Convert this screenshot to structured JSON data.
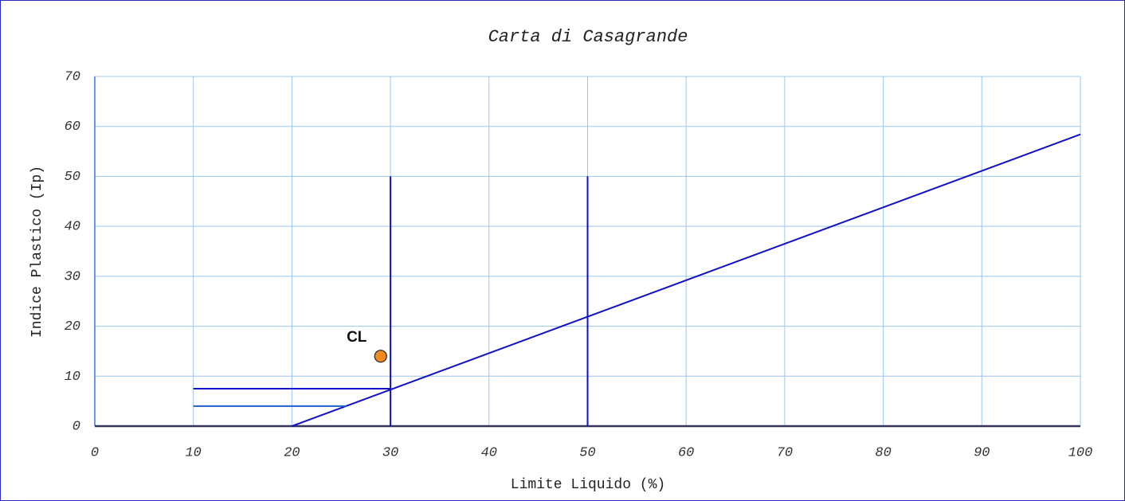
{
  "chart_data": {
    "type": "line",
    "title": "Carta di Casagrande",
    "x_label": "Limite Liquido (%)",
    "y_label": "Indice Plastico (Ip)",
    "xlim": [
      0,
      100
    ],
    "xticks": [
      0,
      10,
      20,
      30,
      40,
      50,
      60,
      70,
      80,
      90,
      100
    ],
    "ylim": [
      0,
      70
    ],
    "yticks": [
      0,
      10,
      20,
      30,
      40,
      50,
      60,
      70
    ],
    "grid": true,
    "series": [
      {
        "color": "#1010c8",
        "x": [
          20,
          100
        ],
        "values": [
          0,
          58.4
        ]
      },
      {
        "color": "#1010c8",
        "x": [
          30,
          30
        ],
        "values": [
          0,
          50
        ]
      },
      {
        "color": "#1010c8",
        "x": [
          50,
          50
        ],
        "values": [
          0,
          50
        ]
      },
      {
        "color": "#1010c8",
        "x": [
          10,
          30
        ],
        "values": [
          7.5,
          7.5
        ]
      },
      {
        "color": "#1f5fc8",
        "x": [
          10,
          25.5
        ],
        "values": [
          4,
          4
        ]
      },
      {
        "type": "scatter",
        "color": "#f28a1e",
        "x": [
          29
        ],
        "values": [
          14
        ],
        "labels": [
          "CL"
        ]
      }
    ]
  }
}
